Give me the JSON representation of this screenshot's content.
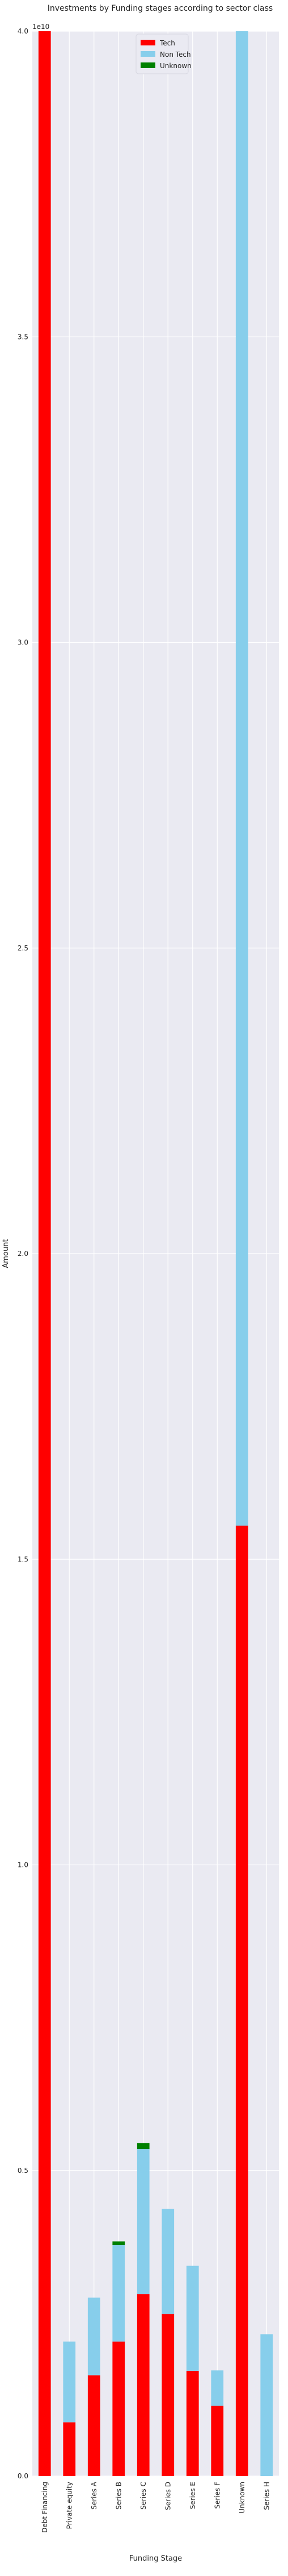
{
  "chart_data": {
    "type": "bar",
    "stacked": true,
    "title": "Investments by Funding stages according to sector class",
    "xlabel": "Funding Stage",
    "ylabel": "Amount",
    "y_multiplier_label": "1e10",
    "ylim": [
      0,
      4.0
    ],
    "yticks": [
      "0.0",
      "0.5",
      "1.0",
      "1.5",
      "2.0",
      "2.5",
      "3.0",
      "3.5",
      "4.0"
    ],
    "grid": true,
    "legend_position": "top-center",
    "categories": [
      "Debt Financing",
      "Private equity",
      "Series A",
      "Series B",
      "Series C",
      "Series D",
      "Series E",
      "Series F",
      "Unknown",
      "Series H"
    ],
    "series": [
      {
        "name": "Tech",
        "color": "#ff0000",
        "values": [
          4.0,
          0.088,
          0.165,
          0.22,
          0.298,
          0.265,
          0.172,
          0.115,
          1.555,
          0.0
        ]
      },
      {
        "name": "Non Tech",
        "color": "#87ceeb",
        "values": [
          0.0,
          0.132,
          0.127,
          0.158,
          0.237,
          0.172,
          0.172,
          0.058,
          2.445,
          0.232
        ]
      },
      {
        "name": "Unknown",
        "color": "#008000",
        "values": [
          0.0,
          0.0,
          0.0,
          0.006,
          0.01,
          0.0,
          0.0,
          0.0,
          0.0,
          0.0
        ]
      }
    ]
  }
}
